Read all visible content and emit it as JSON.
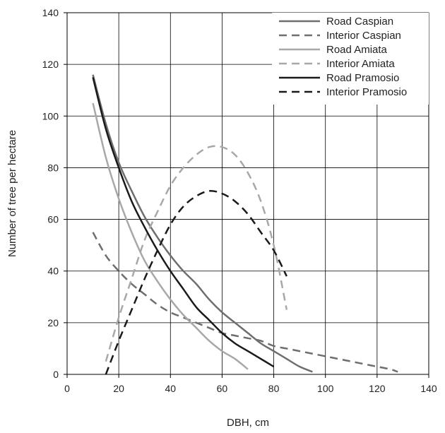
{
  "chart_data": {
    "type": "line",
    "title": "",
    "xlabel": "DBH, cm",
    "ylabel": "Number of tree per hectare",
    "xlim": [
      0,
      140
    ],
    "ylim": [
      0,
      140
    ],
    "xticks": [
      0,
      20,
      40,
      60,
      80,
      100,
      120,
      140
    ],
    "yticks": [
      0,
      20,
      40,
      60,
      80,
      100,
      120,
      140
    ],
    "grid": true,
    "legend_position": "top-right",
    "series": [
      {
        "name": "Road Caspian",
        "color": "#6e6e6e",
        "dash": "solid",
        "x": [
          10,
          15,
          20,
          25,
          30,
          35,
          40,
          45,
          50,
          55,
          60,
          65,
          70,
          75,
          80,
          85,
          90,
          95
        ],
        "y": [
          116,
          97,
          82,
          71,
          61,
          53,
          46,
          40,
          35,
          29,
          24,
          20,
          16,
          12,
          9,
          6,
          3,
          1
        ]
      },
      {
        "name": "Interior Caspian",
        "color": "#6e6e6e",
        "dash": "dashed",
        "x": [
          10,
          15,
          20,
          25,
          30,
          35,
          40,
          45,
          50,
          55,
          60,
          65,
          70,
          75,
          80,
          85,
          90,
          95,
          100,
          105,
          110,
          115,
          120,
          125,
          128
        ],
        "y": [
          55,
          46,
          40,
          35,
          31,
          27,
          24,
          22,
          20,
          18,
          16,
          15,
          14,
          13,
          11,
          10,
          9,
          8,
          7,
          6,
          5,
          4,
          3,
          2,
          1
        ]
      },
      {
        "name": "Road Amiata",
        "color": "#a8a8a8",
        "dash": "solid",
        "x": [
          10,
          15,
          20,
          25,
          30,
          35,
          40,
          45,
          50,
          55,
          60,
          65,
          70
        ],
        "y": [
          105,
          84,
          68,
          55,
          44,
          36,
          29,
          23,
          18,
          13,
          9,
          6,
          2
        ]
      },
      {
        "name": "Interior Amiata",
        "color": "#a8a8a8",
        "dash": "dashed",
        "x": [
          15,
          20,
          25,
          30,
          35,
          40,
          45,
          50,
          55,
          60,
          65,
          70,
          75,
          80,
          85
        ],
        "y": [
          5,
          22,
          37,
          52,
          63,
          73,
          80,
          85,
          88,
          88,
          85,
          78,
          67,
          50,
          25
        ]
      },
      {
        "name": "Road Pramosio",
        "color": "#1a1a1a",
        "dash": "solid",
        "x": [
          10,
          15,
          20,
          25,
          30,
          35,
          40,
          45,
          50,
          55,
          60,
          65,
          70,
          75,
          80
        ],
        "y": [
          115,
          95,
          80,
          67,
          57,
          48,
          40,
          33,
          26,
          21,
          16,
          12,
          9,
          6,
          3
        ]
      },
      {
        "name": "Interior Pramosio",
        "color": "#1a1a1a",
        "dash": "dashed",
        "x": [
          15,
          20,
          25,
          30,
          35,
          40,
          45,
          50,
          55,
          60,
          65,
          70,
          75,
          80,
          85
        ],
        "y": [
          0,
          13,
          25,
          37,
          48,
          58,
          65,
          69,
          71,
          70,
          67,
          62,
          55,
          48,
          38
        ]
      }
    ]
  }
}
